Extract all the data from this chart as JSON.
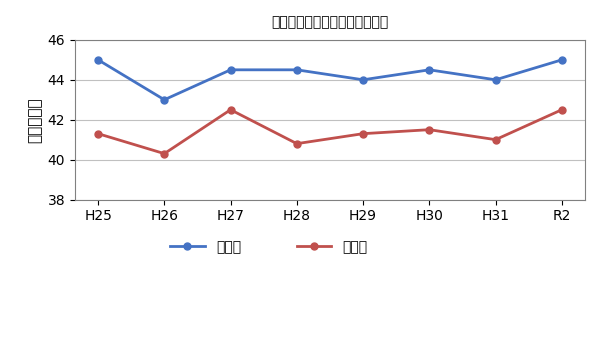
{
  "title": "機械工学科　推薦選抜　合格点",
  "ylabel_label": "（点数）点",
  "x_labels": [
    "H25",
    "H26",
    "H27",
    "H28",
    "H29",
    "H30",
    "H31",
    "R2"
  ],
  "series": [
    {
      "label": "最高点",
      "color": "#4472C4",
      "values": [
        45.0,
        43.0,
        44.5,
        44.5,
        44.0,
        44.5,
        44.0,
        45.0
      ]
    },
    {
      "label": "平均点",
      "color": "#C0504D",
      "values": [
        41.3,
        40.3,
        42.5,
        40.8,
        41.3,
        41.5,
        41.0,
        42.5
      ]
    }
  ],
  "ylim": [
    38,
    46
  ],
  "yticks": [
    38,
    40,
    42,
    44,
    46
  ],
  "background_color": "#ffffff",
  "title_fontsize": 14,
  "axis_fontsize": 11,
  "legend_fontsize": 12,
  "line_width": 2.0,
  "marker": "o",
  "marker_size": 5,
  "grid_color": "#C0C0C0",
  "grid_linewidth": 0.8
}
